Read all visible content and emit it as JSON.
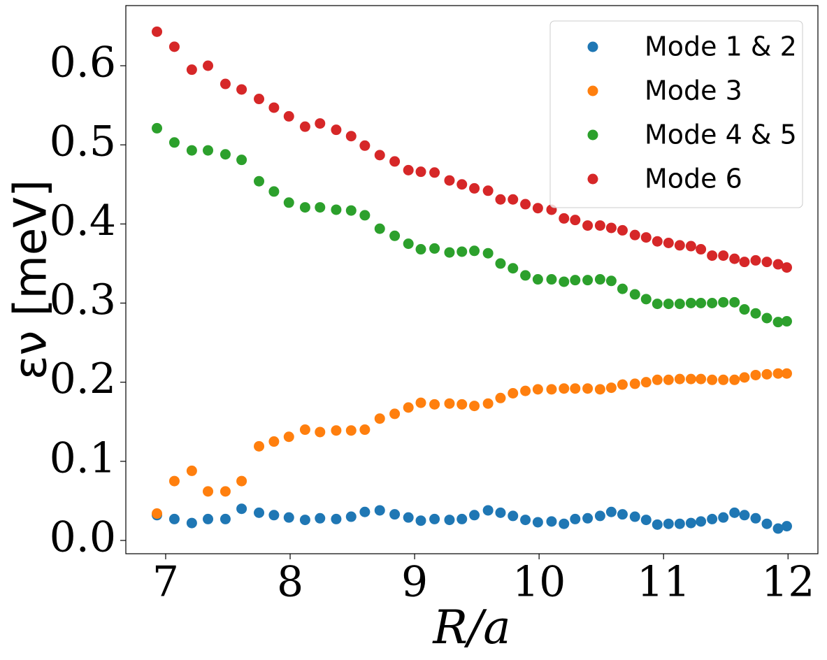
{
  "chart_data": {
    "type": "scatter",
    "xlabel": "R/a",
    "ylabel": "εν [meV]",
    "x": [
      6.93,
      7.07,
      7.21,
      7.34,
      7.48,
      7.61,
      7.75,
      7.87,
      7.99,
      8.12,
      8.24,
      8.37,
      8.49,
      8.6,
      8.72,
      8.84,
      8.95,
      9.05,
      9.16,
      9.28,
      9.38,
      9.48,
      9.59,
      9.69,
      9.79,
      9.89,
      9.99,
      10.1,
      10.2,
      10.29,
      10.39,
      10.49,
      10.58,
      10.67,
      10.77,
      10.86,
      10.95,
      11.04,
      11.13,
      11.22,
      11.3,
      11.39,
      11.48,
      11.57,
      11.65,
      11.74,
      11.83,
      11.92,
      11.99
    ],
    "series": [
      {
        "name": "Mode 1 & 2",
        "color": "#1f77b4",
        "values": [
          0.032,
          0.027,
          0.022,
          0.027,
          0.027,
          0.04,
          0.035,
          0.032,
          0.029,
          0.026,
          0.028,
          0.027,
          0.03,
          0.036,
          0.038,
          0.033,
          0.029,
          0.025,
          0.027,
          0.026,
          0.027,
          0.032,
          0.038,
          0.035,
          0.031,
          0.026,
          0.023,
          0.024,
          0.021,
          0.027,
          0.028,
          0.031,
          0.036,
          0.033,
          0.03,
          0.026,
          0.02,
          0.021,
          0.021,
          0.022,
          0.024,
          0.027,
          0.029,
          0.035,
          0.032,
          0.028,
          0.021,
          0.015,
          0.018
        ]
      },
      {
        "name": "Mode 3",
        "color": "#ff7f0e",
        "values": [
          0.034,
          0.075,
          0.088,
          0.062,
          0.062,
          0.075,
          0.119,
          0.125,
          0.131,
          0.14,
          0.137,
          0.139,
          0.139,
          0.14,
          0.154,
          0.16,
          0.168,
          0.174,
          0.172,
          0.173,
          0.172,
          0.17,
          0.173,
          0.18,
          0.186,
          0.189,
          0.191,
          0.191,
          0.192,
          0.192,
          0.192,
          0.191,
          0.193,
          0.197,
          0.198,
          0.2,
          0.203,
          0.203,
          0.204,
          0.204,
          0.204,
          0.203,
          0.203,
          0.203,
          0.206,
          0.209,
          0.21,
          0.211,
          0.211
        ]
      },
      {
        "name": "Mode 4 & 5",
        "color": "#2ca02c",
        "values": [
          0.521,
          0.503,
          0.493,
          0.493,
          0.488,
          0.481,
          0.454,
          0.441,
          0.427,
          0.421,
          0.421,
          0.418,
          0.417,
          0.411,
          0.394,
          0.385,
          0.375,
          0.368,
          0.369,
          0.364,
          0.365,
          0.366,
          0.363,
          0.35,
          0.344,
          0.335,
          0.33,
          0.33,
          0.327,
          0.329,
          0.329,
          0.33,
          0.328,
          0.318,
          0.311,
          0.305,
          0.299,
          0.299,
          0.299,
          0.3,
          0.3,
          0.3,
          0.301,
          0.301,
          0.292,
          0.287,
          0.281,
          0.276,
          0.277
        ]
      },
      {
        "name": "Mode 6",
        "color": "#d62728",
        "values": [
          0.643,
          0.624,
          0.595,
          0.6,
          0.577,
          0.57,
          0.558,
          0.547,
          0.536,
          0.523,
          0.527,
          0.519,
          0.511,
          0.499,
          0.487,
          0.479,
          0.468,
          0.466,
          0.465,
          0.455,
          0.45,
          0.445,
          0.442,
          0.431,
          0.431,
          0.425,
          0.42,
          0.418,
          0.407,
          0.405,
          0.398,
          0.398,
          0.395,
          0.392,
          0.386,
          0.383,
          0.378,
          0.376,
          0.373,
          0.372,
          0.368,
          0.36,
          0.36,
          0.356,
          0.352,
          0.354,
          0.352,
          0.349,
          0.345
        ]
      }
    ],
    "xlim": [
      6.68,
      12.24
    ],
    "ylim": [
      -0.0168,
      0.676
    ],
    "xticks": [
      7,
      8,
      9,
      10,
      11,
      12
    ],
    "yticks": [
      {
        "value": 0,
        "label": "0.0"
      },
      0.1,
      0.2,
      0.3,
      0.4,
      0.5,
      0.6
    ],
    "legend": "upper right"
  }
}
